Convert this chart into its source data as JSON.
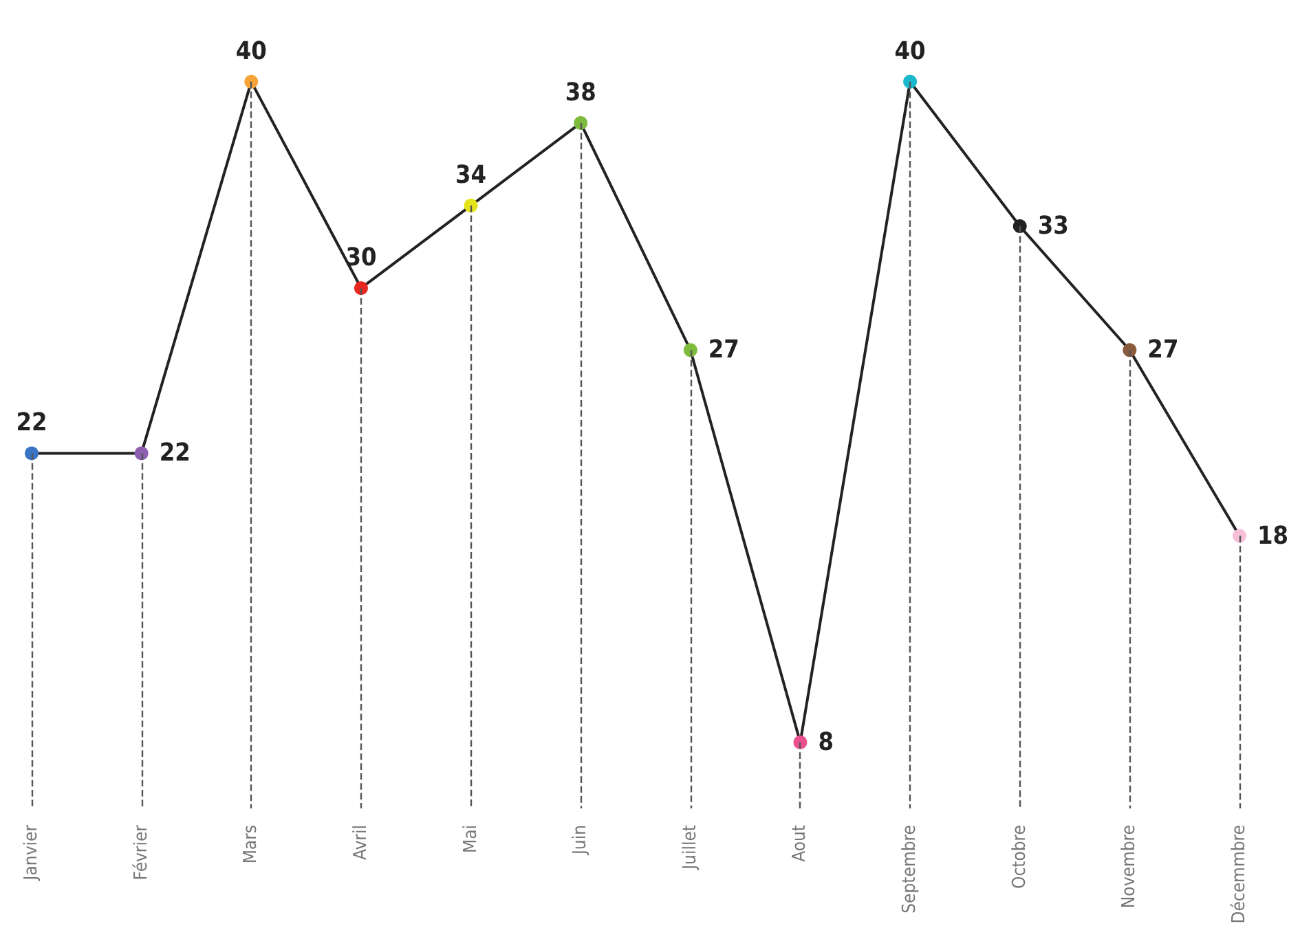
{
  "chart_data": {
    "type": "line",
    "categories": [
      "Janvier",
      "Février",
      "Mars",
      "Avril",
      "Mai",
      "Juin",
      "Juillet",
      "Aout",
      "Septembre",
      "Octobre",
      "Novembre",
      "Décemmbre"
    ],
    "series": [
      {
        "color": "#222222",
        "values": [
          22,
          22,
          40,
          30,
          34,
          38,
          27,
          8,
          40,
          33,
          27,
          18
        ],
        "colors": [
          "#3a75c4",
          "#8e5fb0",
          "#f7a33a",
          "#e8281e",
          "#e4e41c",
          "#7dbb3c",
          "#7dbb3c",
          "#ec4f8e",
          "#1ab8cc",
          "#222222",
          "#8a5a3c",
          "#f7c0d8"
        ]
      }
    ],
    "data_labels": true,
    "marker": "circle",
    "line_style": "solid",
    "grid": "x"
  }
}
